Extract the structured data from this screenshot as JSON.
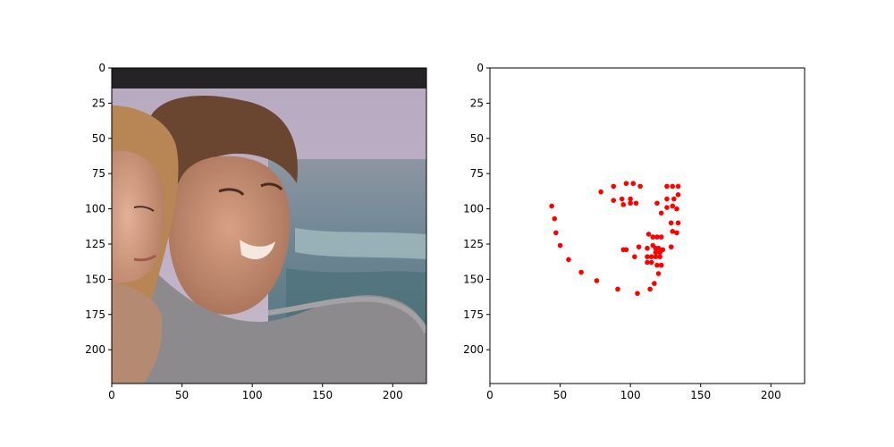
{
  "chart_data": [
    {
      "type": "image",
      "description_source": "photo panel",
      "xlim": [
        0,
        224
      ],
      "ylim": [
        224,
        0
      ],
      "xticks": [
        0,
        50,
        100,
        150,
        200
      ],
      "yticks": [
        0,
        25,
        50,
        75,
        100,
        125,
        150,
        175,
        200
      ],
      "xtick_labels": [
        "0",
        "50",
        "100",
        "150",
        "200"
      ],
      "ytick_labels": [
        "0",
        "25",
        "50",
        "75",
        "100",
        "125",
        "150",
        "175",
        "200"
      ],
      "grid": false
    },
    {
      "type": "scatter",
      "xlim": [
        0,
        224
      ],
      "ylim": [
        224,
        0
      ],
      "xticks": [
        0,
        50,
        100,
        150,
        200
      ],
      "yticks": [
        0,
        25,
        50,
        75,
        100,
        125,
        150,
        175,
        200
      ],
      "xtick_labels": [
        "0",
        "50",
        "100",
        "150",
        "200"
      ],
      "ytick_labels": [
        "0",
        "25",
        "50",
        "75",
        "100",
        "125",
        "150",
        "175",
        "200"
      ],
      "grid": false,
      "marker_color": "#ff0000",
      "points": [
        {
          "x": 44,
          "y": 98
        },
        {
          "x": 46,
          "y": 107
        },
        {
          "x": 47,
          "y": 117
        },
        {
          "x": 50,
          "y": 126
        },
        {
          "x": 56,
          "y": 136
        },
        {
          "x": 65,
          "y": 145
        },
        {
          "x": 76,
          "y": 151
        },
        {
          "x": 91,
          "y": 157
        },
        {
          "x": 105,
          "y": 160
        },
        {
          "x": 114,
          "y": 157
        },
        {
          "x": 117,
          "y": 153
        },
        {
          "x": 120,
          "y": 146
        },
        {
          "x": 122,
          "y": 140
        },
        {
          "x": 129,
          "y": 127
        },
        {
          "x": 133,
          "y": 117
        },
        {
          "x": 134,
          "y": 110
        },
        {
          "x": 129,
          "y": 110
        },
        {
          "x": 130,
          "y": 116
        },
        {
          "x": 79,
          "y": 88
        },
        {
          "x": 88,
          "y": 84
        },
        {
          "x": 97,
          "y": 82
        },
        {
          "x": 102,
          "y": 82
        },
        {
          "x": 107,
          "y": 84
        },
        {
          "x": 88,
          "y": 94
        },
        {
          "x": 94,
          "y": 93
        },
        {
          "x": 95,
          "y": 97
        },
        {
          "x": 100,
          "y": 96
        },
        {
          "x": 104,
          "y": 96
        },
        {
          "x": 100,
          "y": 93
        },
        {
          "x": 126,
          "y": 84
        },
        {
          "x": 130,
          "y": 84
        },
        {
          "x": 134,
          "y": 84
        },
        {
          "x": 126,
          "y": 93
        },
        {
          "x": 131,
          "y": 93
        },
        {
          "x": 134,
          "y": 90
        },
        {
          "x": 119,
          "y": 96
        },
        {
          "x": 126,
          "y": 99
        },
        {
          "x": 130,
          "y": 98
        },
        {
          "x": 133,
          "y": 100
        },
        {
          "x": 122,
          "y": 103
        },
        {
          "x": 113,
          "y": 118
        },
        {
          "x": 116,
          "y": 120
        },
        {
          "x": 119,
          "y": 120
        },
        {
          "x": 122,
          "y": 120
        },
        {
          "x": 95,
          "y": 129
        },
        {
          "x": 97,
          "y": 129
        },
        {
          "x": 106,
          "y": 127
        },
        {
          "x": 112,
          "y": 128
        },
        {
          "x": 116,
          "y": 126
        },
        {
          "x": 118,
          "y": 128
        },
        {
          "x": 120,
          "y": 128
        },
        {
          "x": 123,
          "y": 129
        },
        {
          "x": 118,
          "y": 131
        },
        {
          "x": 121,
          "y": 131
        },
        {
          "x": 103,
          "y": 134
        },
        {
          "x": 112,
          "y": 134
        },
        {
          "x": 115,
          "y": 134
        },
        {
          "x": 118,
          "y": 134
        },
        {
          "x": 121,
          "y": 134
        },
        {
          "x": 112,
          "y": 138
        },
        {
          "x": 115,
          "y": 138
        },
        {
          "x": 119,
          "y": 140
        },
        {
          "x": 122,
          "y": 140
        }
      ]
    }
  ]
}
